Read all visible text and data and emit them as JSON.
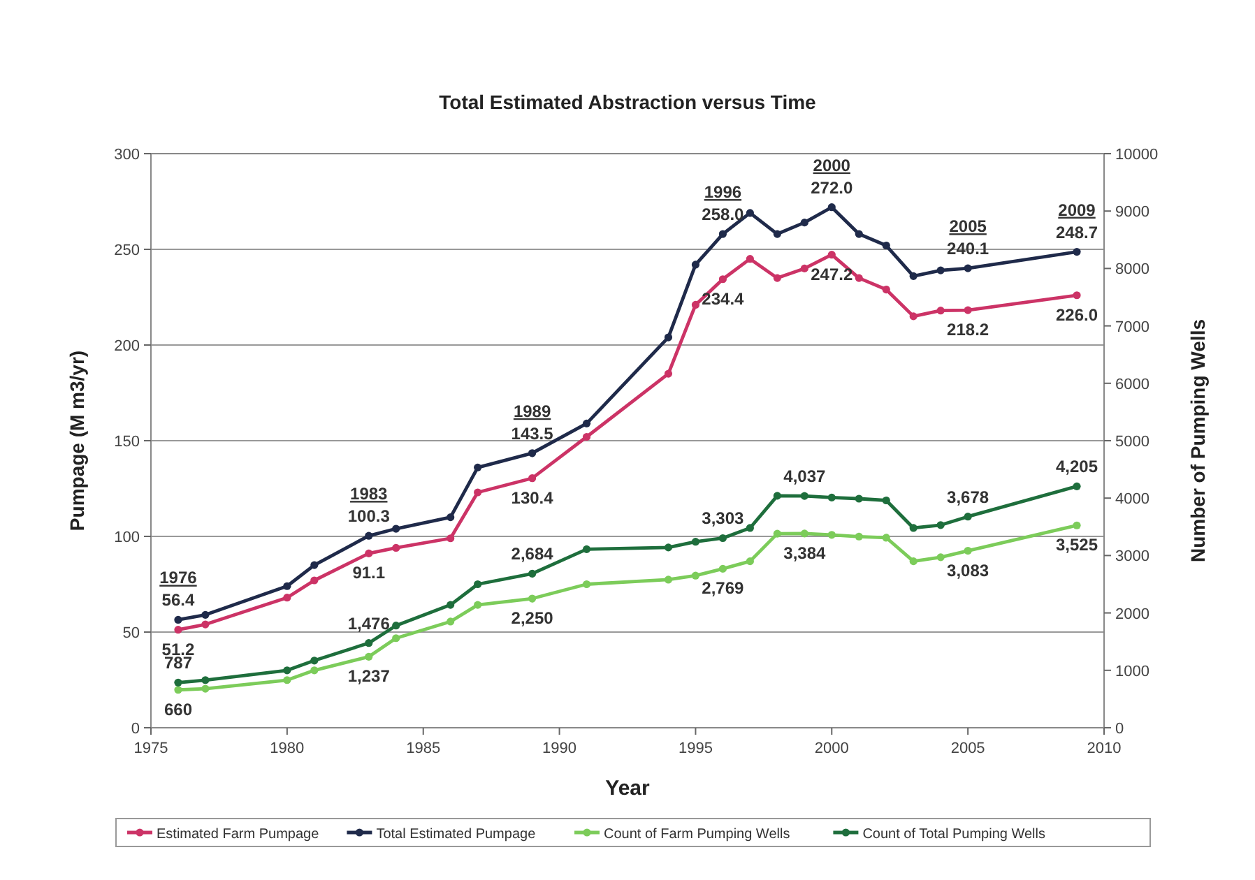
{
  "chart_data": {
    "type": "line",
    "title": "Total Estimated Abstraction versus Time",
    "xlabel": "Year",
    "ylabel": "Pumpage (M m3/yr)",
    "y2label": "Number of Pumping Wells",
    "x": [
      1976,
      1977,
      1980,
      1981,
      1983,
      1984,
      1986,
      1987,
      1989,
      1991,
      1994,
      1995,
      1996,
      1997,
      1998,
      1999,
      2000,
      2001,
      2002,
      2003,
      2004,
      2005,
      2009
    ],
    "series": [
      {
        "name": "Estimated Farm Pumpage",
        "color": "#cc3366",
        "values": [
          51.2,
          54,
          68,
          77,
          91.1,
          94,
          99,
          123,
          130.4,
          152,
          185,
          221,
          234.4,
          245,
          235,
          240,
          247.2,
          235,
          229,
          215,
          218,
          218.2,
          226.0
        ],
        "value_labels": [
          "51.2",
          null,
          null,
          null,
          "91.1",
          null,
          null,
          null,
          "130.4",
          null,
          null,
          null,
          "234.4",
          null,
          null,
          null,
          "247.2",
          null,
          null,
          null,
          null,
          "218.2",
          "226.0"
        ]
      },
      {
        "name": "Total Estimated Pumpage",
        "color": "#1f2a4a",
        "values": [
          56.4,
          59,
          74,
          85,
          100.3,
          104,
          110,
          136,
          143.5,
          159,
          204,
          242,
          258.0,
          269,
          258,
          264,
          272.0,
          258,
          252,
          236,
          239,
          240.1,
          248.7
        ],
        "value_labels": [
          "56.4",
          null,
          null,
          null,
          "100.3",
          null,
          null,
          null,
          "143.5",
          null,
          null,
          null,
          "258.0",
          null,
          null,
          null,
          "272.0",
          null,
          null,
          null,
          null,
          "240.1",
          "248.7"
        ]
      },
      {
        "name": "Count of Farm Pumping Wells",
        "color": "#7ccc5a",
        "axis": "y2",
        "values": [
          660,
          680,
          830,
          1000,
          1237,
          1560,
          1850,
          2140,
          2250,
          2500,
          2580,
          2650,
          2769,
          2900,
          3380,
          3384,
          3360,
          3330,
          3310,
          2900,
          2970,
          3083,
          3525
        ],
        "value_labels": [
          "660",
          null,
          null,
          null,
          "1,237",
          null,
          null,
          null,
          "2,250",
          null,
          null,
          null,
          "2,769",
          null,
          null,
          "3,384",
          null,
          null,
          null,
          null,
          null,
          "3,083",
          "3,525"
        ]
      },
      {
        "name": "Count of Total Pumping Wells",
        "color": "#1e6e3c",
        "axis": "y2",
        "values": [
          787,
          830,
          1000,
          1170,
          1476,
          1780,
          2140,
          2500,
          2684,
          3110,
          3140,
          3240,
          3303,
          3480,
          4040,
          4037,
          4010,
          3990,
          3960,
          3480,
          3530,
          3678,
          4205
        ],
        "value_labels": [
          "787",
          null,
          null,
          null,
          "1,476",
          null,
          null,
          null,
          "2,684",
          null,
          null,
          null,
          "3,303",
          null,
          null,
          "4,037",
          null,
          null,
          null,
          null,
          null,
          "3,678",
          "4,205"
        ]
      }
    ],
    "annotations": [
      {
        "text": "1976",
        "x": 1976,
        "y": 56.4
      },
      {
        "text": "1983",
        "x": 1983,
        "y": 100.3
      },
      {
        "text": "1989",
        "x": 1989,
        "y": 143.5
      },
      {
        "text": "1996",
        "x": 1996,
        "y": 258.0
      },
      {
        "text": "2000",
        "x": 2000,
        "y": 272.0
      },
      {
        "text": "2005",
        "x": 2005,
        "y": 240.1
      },
      {
        "text": "2009",
        "x": 2009,
        "y": 248.7
      }
    ],
    "xlim": [
      1975,
      2010
    ],
    "xticks": [
      1975,
      1980,
      1985,
      1990,
      1995,
      2000,
      2005,
      2010
    ],
    "ylim": [
      0,
      300
    ],
    "yticks": [
      0,
      50,
      100,
      150,
      200,
      250,
      300
    ],
    "y2lim": [
      0,
      10000
    ],
    "y2ticks": [
      0,
      1000,
      2000,
      3000,
      4000,
      5000,
      6000,
      7000,
      8000,
      9000,
      10000
    ],
    "grid": "y",
    "legend": "bottom",
    "marker": "circle",
    "line_style": "solid"
  }
}
